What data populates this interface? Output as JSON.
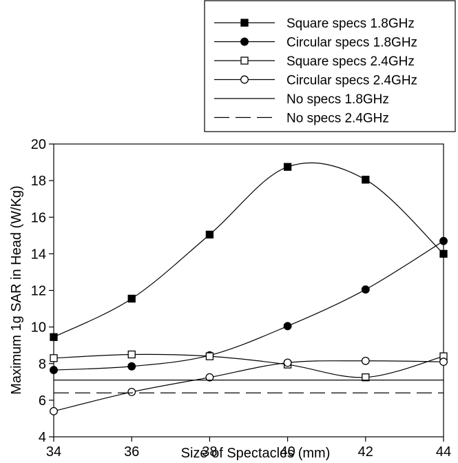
{
  "chart_data": {
    "type": "line",
    "title": "",
    "xlabel": "Size of Spectacles (mm)",
    "ylabel": "Maximum 1g SAR in Head (W/Kg)",
    "xlim": [
      34,
      44
    ],
    "ylim": [
      4,
      20
    ],
    "xticks": [
      34,
      36,
      38,
      40,
      42,
      44
    ],
    "yticks": [
      4,
      6,
      8,
      10,
      12,
      14,
      16,
      18,
      20
    ],
    "grid": false,
    "legend_position": "top-right, above plot",
    "x": [
      34,
      36,
      38,
      40,
      42,
      44
    ],
    "series": [
      {
        "name": "Square specs 1.8GHz",
        "values": [
          9.45,
          11.55,
          15.05,
          18.75,
          18.05,
          14.0
        ],
        "marker": "square",
        "filled": true,
        "line": "solid",
        "smooth": true
      },
      {
        "name": "Circular specs 1.8GHz",
        "values": [
          7.65,
          7.85,
          8.45,
          10.05,
          12.05,
          14.7
        ],
        "marker": "circle",
        "filled": true,
        "line": "solid",
        "smooth": true
      },
      {
        "name": "Square specs 2.4GHz",
        "values": [
          8.3,
          8.5,
          8.4,
          7.95,
          7.25,
          8.4
        ],
        "marker": "square",
        "filled": false,
        "line": "solid",
        "smooth": true
      },
      {
        "name": "Circular specs 2.4GHz",
        "values": [
          5.4,
          6.45,
          7.25,
          8.05,
          8.15,
          8.1
        ],
        "marker": "circle",
        "filled": false,
        "line": "solid",
        "smooth": true
      },
      {
        "name": "No specs 1.8GHz",
        "values": [
          7.1,
          7.1,
          7.1,
          7.1,
          7.1,
          7.1
        ],
        "marker": "none",
        "line": "solid",
        "smooth": false
      },
      {
        "name": "No specs 2.4GHz",
        "values": [
          6.4,
          6.4,
          6.4,
          6.4,
          6.4,
          6.4
        ],
        "marker": "none",
        "line": "dashed",
        "smooth": false
      }
    ]
  }
}
